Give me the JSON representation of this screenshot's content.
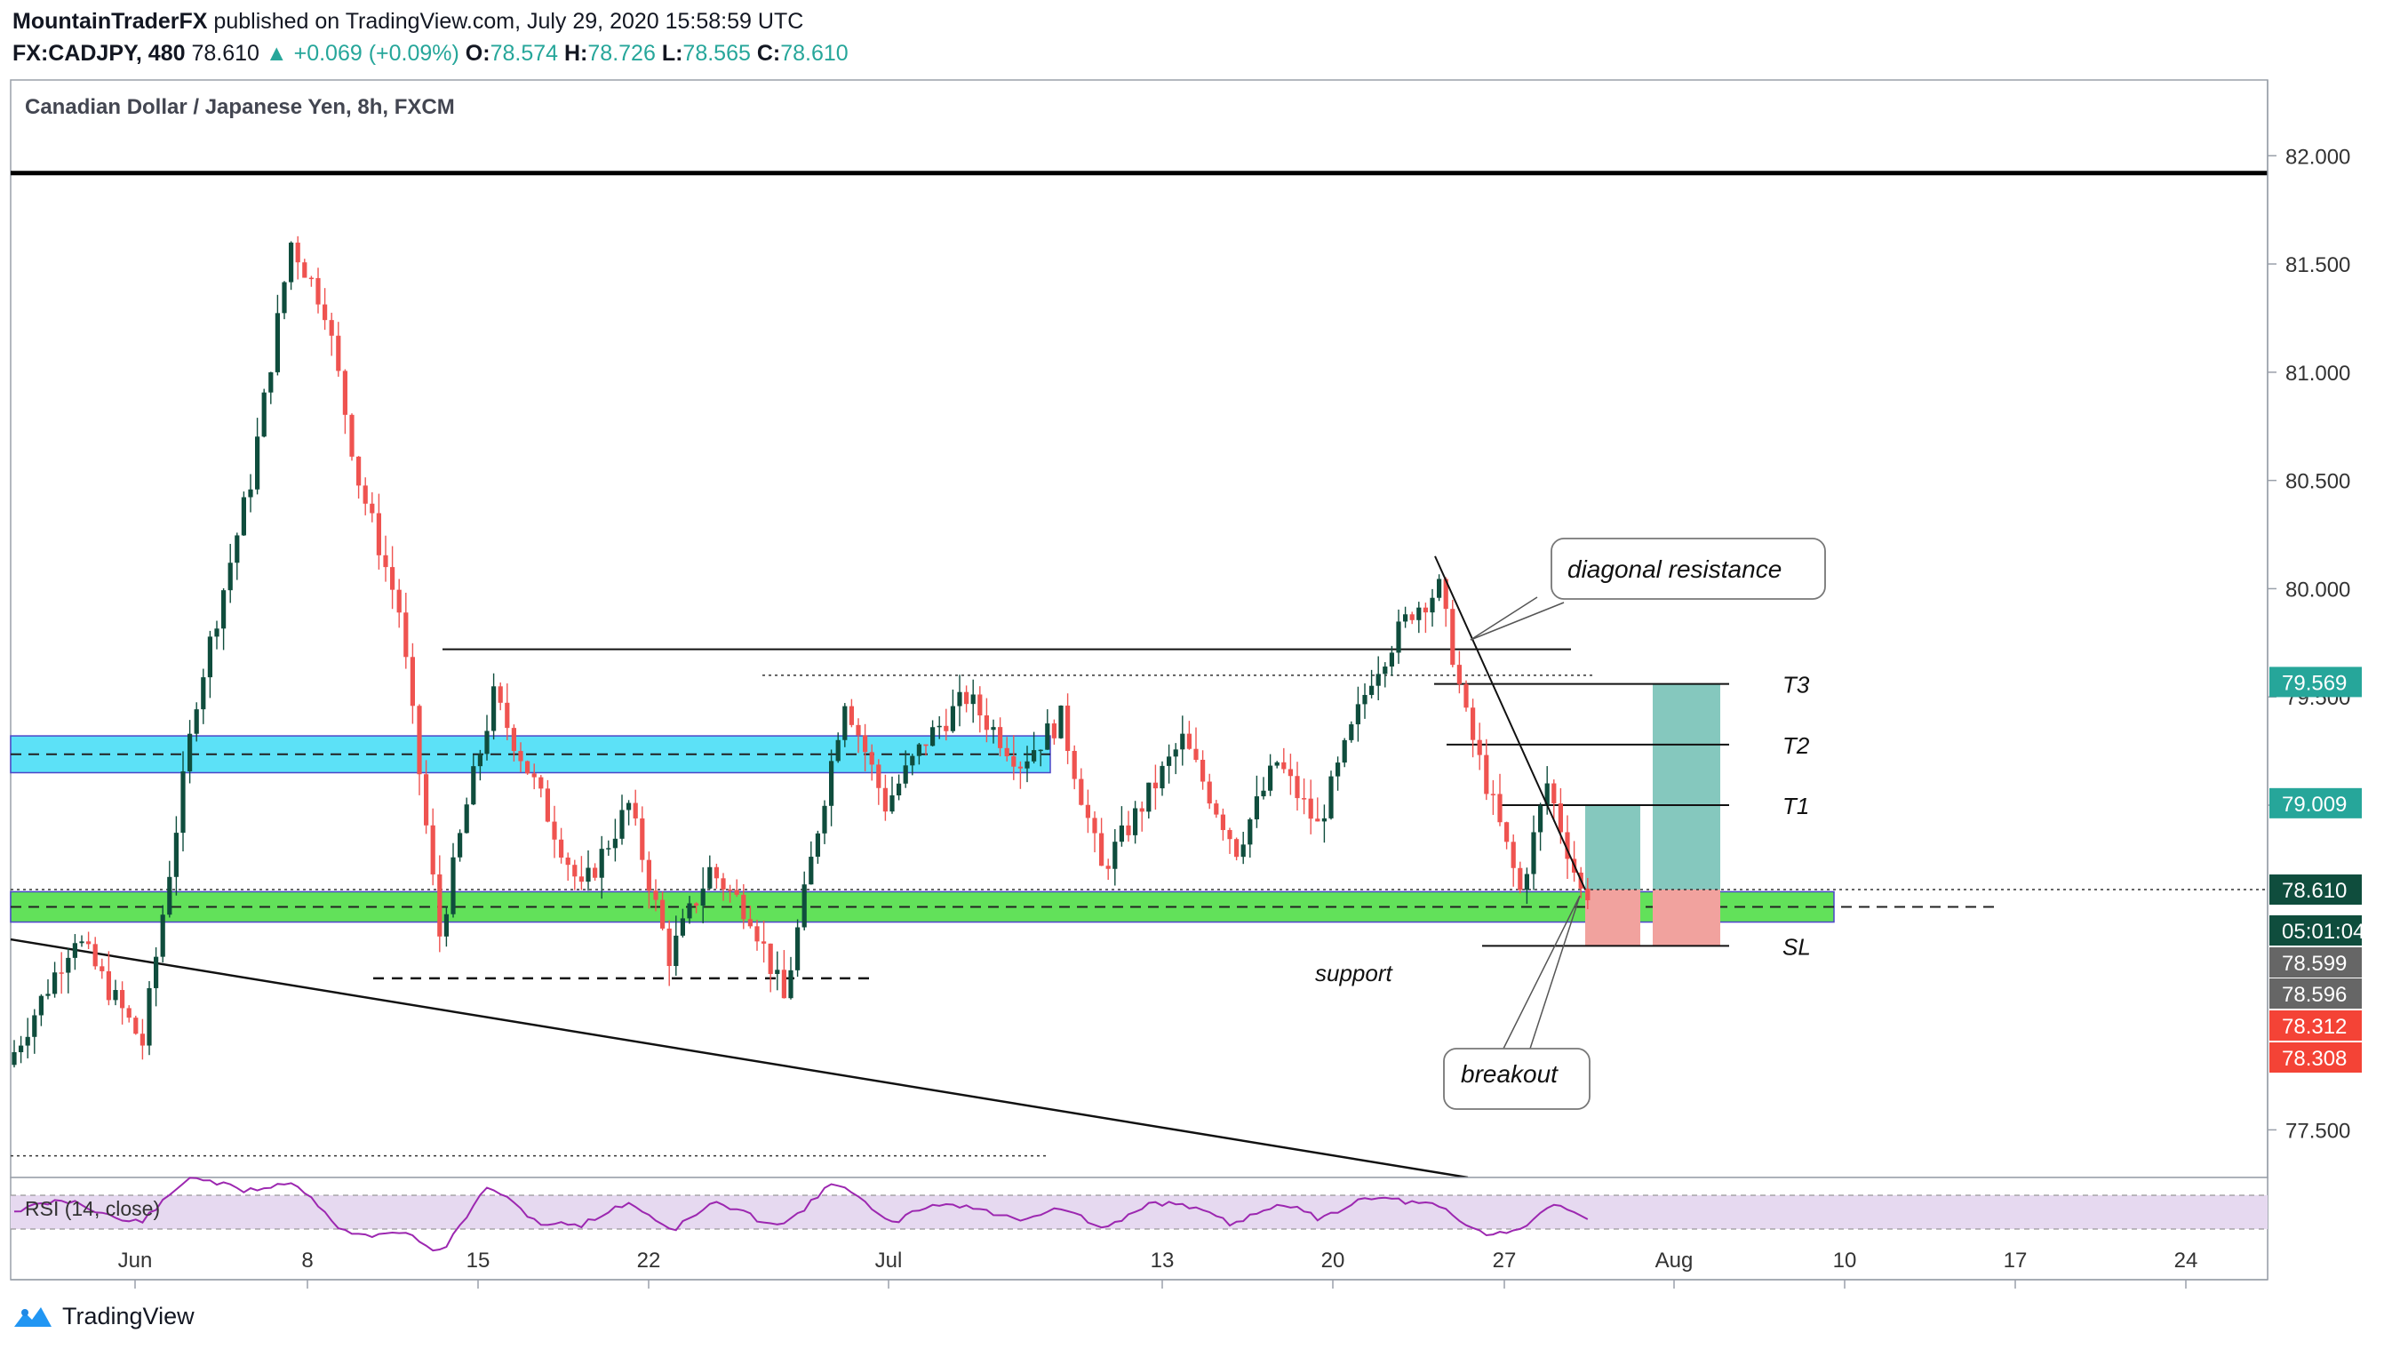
{
  "header": {
    "author": "MountainTraderFX",
    "published": "published on TradingView.com, July 29, 2020 15:58:59 UTC",
    "symbol": "FX:CADJPY, 480",
    "last": "78.610",
    "change": "▲ +0.069 (+0.09%)",
    "o_label": "O:",
    "o": "78.574",
    "h_label": "H:",
    "h": "78.726",
    "l_label": "L:",
    "l": "78.565",
    "c_label": "C:",
    "c": "78.610"
  },
  "footer": {
    "brand": "TradingView"
  },
  "colors": {
    "up": "#0f4d3d",
    "down": "#ef5350",
    "blue_zone": "#5ce1f7",
    "green_zone": "#62e15a",
    "teal_box": "#85c8be",
    "red_box": "#f1a29e",
    "rsi_line": "#9c27b0",
    "rsi_bg": "#e6d9f0"
  },
  "chart_data": {
    "type": "candlestick",
    "title": "Canadian Dollar / Japanese Yen, 8h, FXCM",
    "ylim": [
      77.28,
      82.35
    ],
    "y_ticks": [
      "82.000",
      "81.500",
      "81.000",
      "80.500",
      "80.000",
      "79.500",
      "79.000",
      "77.500"
    ],
    "x_ticks": [
      "Jun",
      "8",
      "15",
      "22",
      "Jul",
      "13",
      "20",
      "27",
      "Aug",
      "10",
      "17",
      "24"
    ],
    "price_badges": [
      {
        "value": 79.569,
        "label": "79.569",
        "color": "#26a69a"
      },
      {
        "value": 79.009,
        "label": "79.009",
        "color": "#26a69a"
      },
      {
        "value": 78.61,
        "label": "78.610",
        "color": "#0f4d3d"
      },
      {
        "label": "05:01:04",
        "color": "#0f4d3d"
      },
      {
        "label": "78.599",
        "color": "#666666"
      },
      {
        "label": "78.596",
        "color": "#666666"
      },
      {
        "label": "78.312",
        "color": "#f44336"
      },
      {
        "label": "78.308",
        "color": "#f44336"
      }
    ],
    "anchors": [
      [
        0,
        77.8
      ],
      [
        10,
        78.4
      ],
      [
        20,
        77.9
      ],
      [
        28,
        79.5
      ],
      [
        36,
        80.5
      ],
      [
        42,
        81.6
      ],
      [
        47,
        81.3
      ],
      [
        52,
        80.5
      ],
      [
        58,
        79.9
      ],
      [
        64,
        78.4
      ],
      [
        68,
        79.0
      ],
      [
        72,
        79.5
      ],
      [
        78,
        79.1
      ],
      [
        85,
        78.6
      ],
      [
        92,
        79.0
      ],
      [
        98,
        78.3
      ],
      [
        104,
        78.7
      ],
      [
        110,
        78.5
      ],
      [
        115,
        78.1
      ],
      [
        120,
        78.9
      ],
      [
        124,
        79.5
      ],
      [
        130,
        79.0
      ],
      [
        136,
        79.3
      ],
      [
        142,
        79.5
      ],
      [
        150,
        79.2
      ],
      [
        156,
        79.4
      ],
      [
        162,
        78.7
      ],
      [
        168,
        79.0
      ],
      [
        174,
        79.3
      ],
      [
        182,
        78.8
      ],
      [
        188,
        79.2
      ],
      [
        194,
        78.9
      ],
      [
        202,
        79.6
      ],
      [
        208,
        79.9
      ],
      [
        212,
        80.0
      ],
      [
        216,
        79.4
      ],
      [
        220,
        79.0
      ],
      [
        224,
        78.6
      ],
      [
        228,
        79.1
      ],
      [
        233,
        78.6
      ]
    ],
    "horizontal_levels": [
      {
        "value": 81.92,
        "label": ""
      },
      {
        "value": 79.56,
        "label": "T3"
      },
      {
        "value": 79.28,
        "label": "T2"
      },
      {
        "value": 79.0,
        "label": "T1"
      },
      {
        "value": 78.35,
        "label": "SL"
      }
    ],
    "zones": [
      {
        "name": "resistance",
        "from": 79.15,
        "to": 79.32
      },
      {
        "name": "support",
        "from": 78.46,
        "to": 78.6
      }
    ],
    "rsi": {
      "label": "RSI (14, close)"
    },
    "annotations": [
      "diagonal resistance",
      "support",
      "breakout"
    ]
  }
}
